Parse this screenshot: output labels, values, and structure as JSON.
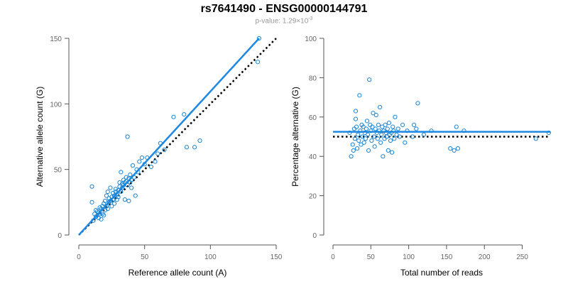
{
  "title": "rs7641490 - ENSG00000144791",
  "subtitle": {
    "label": "p-value:",
    "mantissa": "1.29",
    "times": "×10",
    "exponent": "-3"
  },
  "colors": {
    "points": "#1a85d6",
    "fit_line": "#1e88e5",
    "reference_line": "#000000",
    "axis": "#555555"
  },
  "chart_data": [
    {
      "type": "scatter",
      "xlabel": "Reference allele count (A)",
      "ylabel": "Alternative allele count (G)",
      "xlim": [
        0,
        150
      ],
      "ylim": [
        0,
        150
      ],
      "xticks": [
        0,
        50,
        100,
        150
      ],
      "yticks": [
        0,
        50,
        100,
        150
      ],
      "grid": false,
      "points": [
        [
          10,
          37
        ],
        [
          10,
          25
        ],
        [
          11,
          11
        ],
        [
          12,
          16
        ],
        [
          13,
          14
        ],
        [
          13,
          19
        ],
        [
          14,
          18
        ],
        [
          15,
          13
        ],
        [
          15,
          17
        ],
        [
          16,
          16
        ],
        [
          16,
          21
        ],
        [
          17,
          12
        ],
        [
          17,
          20
        ],
        [
          18,
          16
        ],
        [
          18,
          22
        ],
        [
          19,
          15
        ],
        [
          19,
          24
        ],
        [
          20,
          19
        ],
        [
          20,
          26
        ],
        [
          21,
          22
        ],
        [
          21,
          30
        ],
        [
          22,
          20
        ],
        [
          22,
          33
        ],
        [
          23,
          25
        ],
        [
          23,
          28
        ],
        [
          24,
          26
        ],
        [
          24,
          36
        ],
        [
          25,
          22
        ],
        [
          25,
          29
        ],
        [
          26,
          27
        ],
        [
          26,
          32
        ],
        [
          27,
          24
        ],
        [
          27,
          30
        ],
        [
          28,
          33
        ],
        [
          28,
          35
        ],
        [
          29,
          27
        ],
        [
          29,
          31
        ],
        [
          30,
          34
        ],
        [
          30,
          29
        ],
        [
          31,
          37
        ],
        [
          31,
          40
        ],
        [
          32,
          33
        ],
        [
          32,
          48
        ],
        [
          33,
          36
        ],
        [
          33,
          39
        ],
        [
          34,
          38
        ],
        [
          34,
          42
        ],
        [
          35,
          40
        ],
        [
          35,
          27
        ],
        [
          36,
          41
        ],
        [
          36,
          44
        ],
        [
          37,
          75
        ],
        [
          37,
          38
        ],
        [
          38,
          43
        ],
        [
          38,
          26
        ],
        [
          39,
          40
        ],
        [
          39,
          46
        ],
        [
          40,
          42
        ],
        [
          40,
          36
        ],
        [
          41,
          53
        ],
        [
          42,
          44
        ],
        [
          43,
          30
        ],
        [
          44,
          50
        ],
        [
          45,
          48
        ],
        [
          46,
          56
        ],
        [
          48,
          59
        ],
        [
          50,
          54
        ],
        [
          52,
          59
        ],
        [
          55,
          52
        ],
        [
          58,
          56
        ],
        [
          60,
          62
        ],
        [
          62,
          70
        ],
        [
          65,
          65
        ],
        [
          72,
          90
        ],
        [
          80,
          92
        ],
        [
          82,
          67
        ],
        [
          88,
          67
        ],
        [
          92,
          72
        ],
        [
          136,
          132
        ],
        [
          137,
          150
        ]
      ],
      "fit_line": [
        [
          0,
          0
        ],
        [
          137,
          150
        ]
      ],
      "reference_line": [
        [
          0,
          0
        ],
        [
          150,
          150
        ]
      ]
    },
    {
      "type": "scatter",
      "xlabel": "Total number of reads",
      "ylabel": "Percentage alternative (G)",
      "xlim": [
        0,
        287
      ],
      "ylim": [
        0,
        100
      ],
      "xticks": [
        0,
        50,
        100,
        150,
        200,
        250
      ],
      "yticks": [
        0,
        20,
        40,
        60,
        80,
        100
      ],
      "grid": false,
      "points": [
        [
          22,
          52
        ],
        [
          24,
          40
        ],
        [
          26,
          46
        ],
        [
          27,
          43
        ],
        [
          28,
          54
        ],
        [
          29,
          49
        ],
        [
          30,
          63
        ],
        [
          30,
          59
        ],
        [
          31,
          55
        ],
        [
          32,
          44
        ],
        [
          33,
          51
        ],
        [
          34,
          48
        ],
        [
          35,
          71
        ],
        [
          36,
          53
        ],
        [
          37,
          46
        ],
        [
          38,
          56
        ],
        [
          39,
          50
        ],
        [
          40,
          55
        ],
        [
          41,
          47
        ],
        [
          42,
          52
        ],
        [
          43,
          49
        ],
        [
          44,
          54
        ],
        [
          45,
          58
        ],
        [
          46,
          51
        ],
        [
          47,
          43
        ],
        [
          48,
          79
        ],
        [
          49,
          56
        ],
        [
          50,
          53
        ],
        [
          51,
          48
        ],
        [
          52,
          55
        ],
        [
          53,
          62
        ],
        [
          54,
          50
        ],
        [
          55,
          45
        ],
        [
          56,
          54
        ],
        [
          57,
          61
        ],
        [
          58,
          52
        ],
        [
          59,
          49
        ],
        [
          60,
          56
        ],
        [
          61,
          53
        ],
        [
          62,
          65
        ],
        [
          63,
          47
        ],
        [
          64,
          51
        ],
        [
          65,
          55
        ],
        [
          66,
          40
        ],
        [
          67,
          53
        ],
        [
          68,
          49
        ],
        [
          69,
          56
        ],
        [
          70,
          52
        ],
        [
          71,
          50
        ],
        [
          72,
          54
        ],
        [
          73,
          43
        ],
        [
          74,
          57
        ],
        [
          75,
          51
        ],
        [
          76,
          48
        ],
        [
          77,
          52
        ],
        [
          78,
          42
        ],
        [
          79,
          55
        ],
        [
          80,
          53
        ],
        [
          81,
          49
        ],
        [
          82,
          60
        ],
        [
          84,
          51
        ],
        [
          86,
          54
        ],
        [
          88,
          50
        ],
        [
          92,
          56
        ],
        [
          95,
          47
        ],
        [
          98,
          53
        ],
        [
          105,
          50
        ],
        [
          107,
          56
        ],
        [
          110,
          54
        ],
        [
          112,
          67
        ],
        [
          120,
          51
        ],
        [
          130,
          53
        ],
        [
          155,
          44
        ],
        [
          160,
          43
        ],
        [
          163,
          55
        ],
        [
          165,
          44
        ],
        [
          173,
          53
        ],
        [
          268,
          49
        ],
        [
          285,
          52
        ]
      ],
      "fit_line": [
        [
          0,
          52.5
        ],
        [
          287,
          52.5
        ]
      ],
      "reference_line": [
        [
          0,
          50
        ],
        [
          287,
          50
        ]
      ]
    }
  ]
}
